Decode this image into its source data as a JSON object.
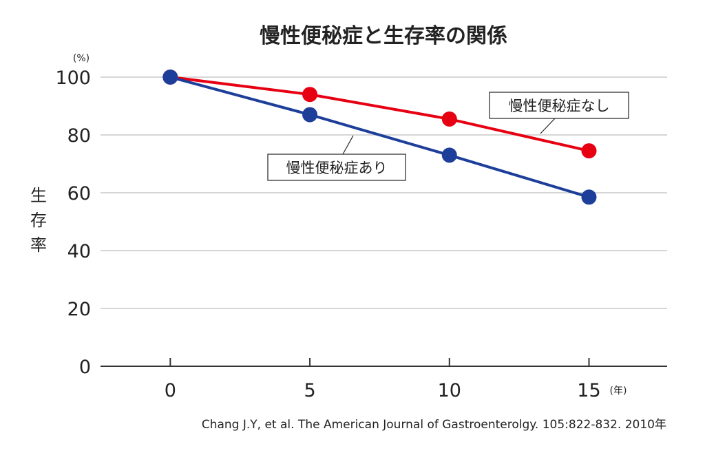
{
  "chart_data": {
    "type": "line",
    "title": "慢性便秘症と生存率の関係",
    "ylabel": "生存率",
    "y_unit": "(%)",
    "x_unit": "(年)",
    "x": [
      0,
      5,
      10,
      15
    ],
    "x_tick_labels": [
      "0",
      "5",
      "10",
      "15"
    ],
    "y_ticks": [
      0,
      20,
      40,
      60,
      80,
      100
    ],
    "y_tick_labels": [
      "0",
      "20",
      "40",
      "60",
      "80",
      "100"
    ],
    "xlim": [
      -2.5,
      17.8
    ],
    "ylim": [
      0,
      100
    ],
    "grid": true,
    "series": [
      {
        "name": "慢性便秘症なし",
        "color": "#e60012",
        "values": [
          100,
          94,
          85.5,
          74.5
        ]
      },
      {
        "name": "慢性便秘症あり",
        "color": "#1d3f9a",
        "values": [
          100,
          87,
          73,
          58.5
        ]
      }
    ],
    "source": "Chang J.Y, et al. The American Journal of Gastroenterolgy. 105:822-832. 2010年"
  }
}
